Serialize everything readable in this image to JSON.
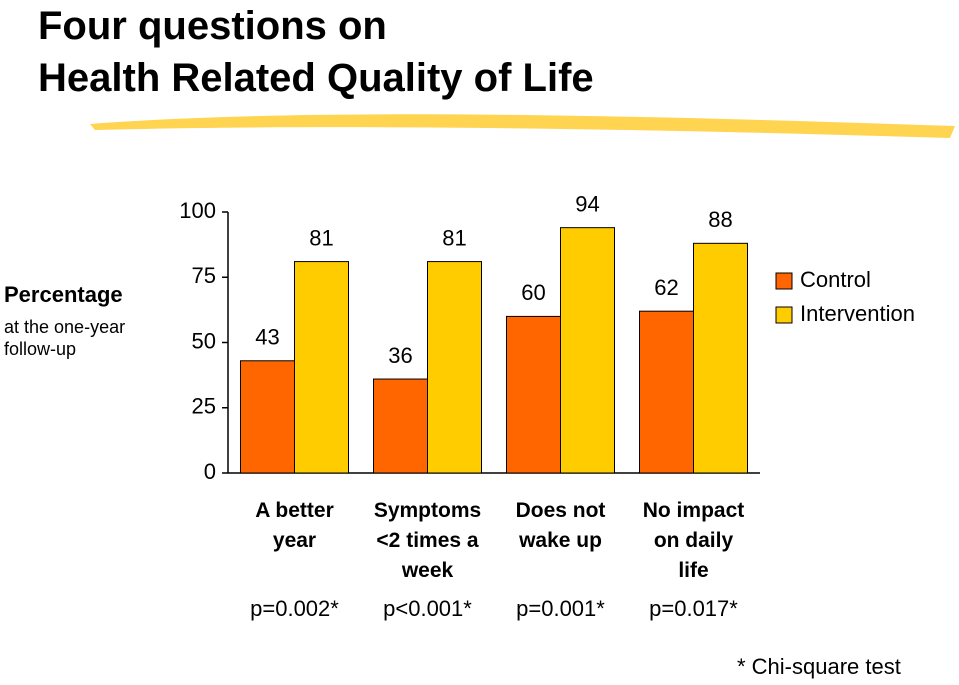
{
  "chart_data": {
    "type": "bar",
    "title": "Four questions on\nHealth Related Quality of Life",
    "y_label": "Percentage",
    "y_label_note": "at the one-year\nfollow-up",
    "categories": [
      "A better\nyear",
      "Symptoms\n<2 times a\nweek",
      "Does not\nwake up",
      "No impact\non daily\nlife"
    ],
    "series": [
      {
        "name": "Control",
        "color": "#ff6600",
        "values": [
          43,
          36,
          60,
          62
        ]
      },
      {
        "name": "Intervention",
        "color": "#ffcc00",
        "values": [
          81,
          81,
          94,
          88
        ]
      }
    ],
    "ylim": [
      0,
      100
    ],
    "yticks": [
      0,
      25,
      50,
      75,
      100
    ],
    "grid": false,
    "legend": "right",
    "p_values": [
      "p=0.002*",
      "p<0.001*",
      "p=0.001*",
      "p=0.017*"
    ],
    "footnote": "* Chi-square test"
  }
}
